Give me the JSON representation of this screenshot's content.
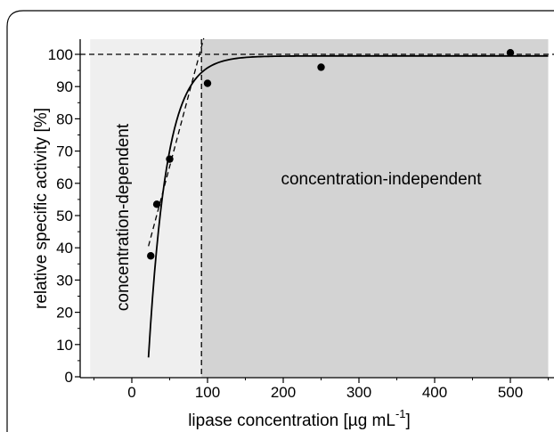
{
  "chart_data": {
    "type": "scatter",
    "xlabel": "lipase concentration [µg mL",
    "xlabel_sup": "-1",
    "xlabel_end": "]",
    "ylabel": "relative specific activity [%]",
    "xlim": [
      -55,
      550
    ],
    "ylim": [
      0,
      105
    ],
    "x_ticks": [
      0,
      100,
      200,
      300,
      400,
      500
    ],
    "y_ticks": [
      0,
      10,
      20,
      30,
      40,
      50,
      60,
      70,
      80,
      90,
      100
    ],
    "grid": false,
    "points": [
      {
        "x": 25,
        "y": 37.5
      },
      {
        "x": 33,
        "y": 53.5
      },
      {
        "x": 50,
        "y": 67.5
      },
      {
        "x": 100,
        "y": 91
      },
      {
        "x": 250,
        "y": 96
      },
      {
        "x": 500,
        "y": 100.5
      }
    ],
    "fit_curve": {
      "x_start": 22,
      "x_end": 550,
      "asymptote": 99.5,
      "x0": 20.5,
      "k": 0.0414
    },
    "tangent_line": {
      "x1": 22,
      "y1": 40.5,
      "x2": 95,
      "y2": 105
    },
    "asymptote_line": {
      "y": 100
    },
    "threshold_line": {
      "x": 92
    },
    "regions": [
      {
        "label": "concentration-dependent",
        "x_from": -55,
        "x_to": 92,
        "color": "#efefef"
      },
      {
        "label": "concentration-independent",
        "x_from": 92,
        "x_to": 550,
        "color": "#d3d3d3"
      }
    ],
    "colors": {
      "point": "#000000",
      "axis": "#000000"
    }
  }
}
